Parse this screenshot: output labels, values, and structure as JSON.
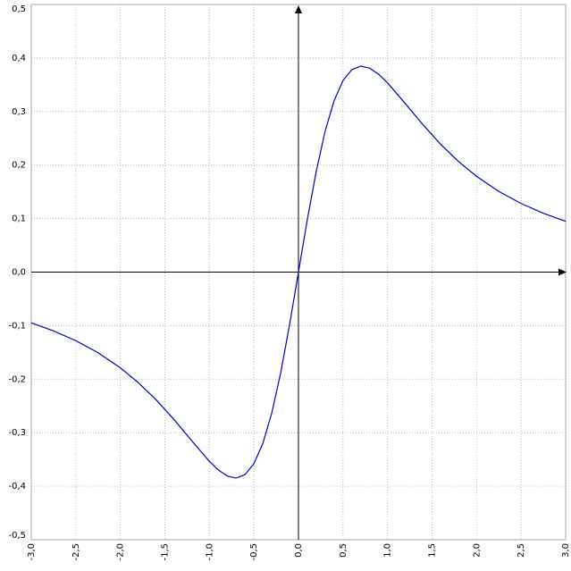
{
  "chart_data": {
    "type": "line",
    "x": [
      -3,
      -2.75,
      -2.5,
      -2.25,
      -2,
      -1.8,
      -1.6,
      -1.4,
      -1.2,
      -1,
      -0.9,
      -0.8,
      -0.7,
      -0.6,
      -0.5,
      -0.4,
      -0.3,
      -0.2,
      -0.1,
      0,
      0.1,
      0.2,
      0.3,
      0.4,
      0.5,
      0.6,
      0.7,
      0.8,
      0.9,
      1,
      1.2,
      1.4,
      1.6,
      1.8,
      2,
      2.25,
      2.5,
      2.75,
      3
    ],
    "series": [
      {
        "color": "#0000cc",
        "values": [
          -0.0949,
          -0.1098,
          -0.1281,
          -0.1507,
          -0.1789,
          -0.2062,
          -0.2382,
          -0.2749,
          -0.3148,
          -0.3536,
          -0.3696,
          -0.3809,
          -0.3849,
          -0.3783,
          -0.3578,
          -0.3202,
          -0.2636,
          -0.1886,
          -0.0985,
          0,
          0.0985,
          0.1886,
          0.2636,
          0.3202,
          0.3578,
          0.3783,
          0.3849,
          0.3809,
          0.3696,
          0.3536,
          0.3148,
          0.2749,
          0.2382,
          0.2062,
          0.1789,
          0.1507,
          0.1281,
          0.1098,
          0.0949
        ]
      }
    ],
    "xlim": [
      -3,
      3
    ],
    "ylim": [
      -0.5,
      0.5
    ],
    "xticks": [
      {
        "value": -3,
        "label": "-3,0"
      },
      {
        "value": -2.5,
        "label": "-2,5"
      },
      {
        "value": -2,
        "label": "-2,0"
      },
      {
        "value": -1.5,
        "label": "-1,5"
      },
      {
        "value": -1,
        "label": "-1,0"
      },
      {
        "value": -0.5,
        "label": "-0,5"
      },
      {
        "value": 0,
        "label": "0,0"
      },
      {
        "value": 0.5,
        "label": "0,5"
      },
      {
        "value": 1,
        "label": "1,0"
      },
      {
        "value": 1.5,
        "label": "1,5"
      },
      {
        "value": 2,
        "label": "2,0"
      },
      {
        "value": 2.5,
        "label": "2,5"
      },
      {
        "value": 3,
        "label": "3,0"
      }
    ],
    "yticks": [
      {
        "value": -0.5,
        "label": "-0,5"
      },
      {
        "value": -0.4,
        "label": "-0,4"
      },
      {
        "value": -0.3,
        "label": "-0,3"
      },
      {
        "value": -0.2,
        "label": "-0,2"
      },
      {
        "value": -0.1,
        "label": "-0,1"
      },
      {
        "value": 0,
        "label": "0,0"
      },
      {
        "value": 0.1,
        "label": "0,1"
      },
      {
        "value": 0.2,
        "label": "0,2"
      },
      {
        "value": 0.3,
        "label": "0,3"
      },
      {
        "value": 0.4,
        "label": "0,4"
      },
      {
        "value": 0.5,
        "label": "0,5"
      }
    ],
    "grid": true
  }
}
